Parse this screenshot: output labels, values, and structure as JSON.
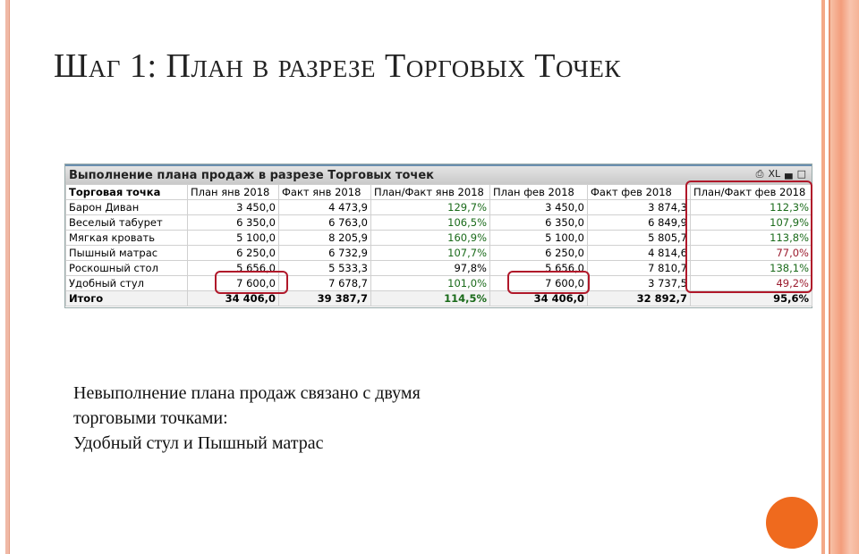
{
  "slide": {
    "title": "Шаг 1: План в разрезе Торговых Точек",
    "body_lines": [
      "Невыполнение плана продаж связано с двумя",
      "торговыми точками:",
      "Удобный стул и Пышный матрас"
    ],
    "accent_color": "#ef6a1e"
  },
  "table": {
    "title": "Выполнение плана продаж в разрезе Торговых точек",
    "icons": [
      "print-icon",
      "XL",
      "minimize-icon",
      "maximize-icon"
    ],
    "xl_label": "XL",
    "headers": [
      "Торговая точка",
      "План янв 2018",
      "Факт янв 2018",
      "План/Факт янв 2018",
      "План фев 2018",
      "Факт фев 2018",
      "План/Факт фев 2018"
    ],
    "rows": [
      [
        "Барон Диван",
        "3 450,0",
        "4 473,9",
        "129,7%",
        "3 450,0",
        "3 874,3",
        "112,3%"
      ],
      [
        "Веселый табурет",
        "6 350,0",
        "6 763,0",
        "106,5%",
        "6 350,0",
        "6 849,9",
        "107,9%"
      ],
      [
        "Мягкая кровать",
        "5 100,0",
        "8 205,9",
        "160,9%",
        "5 100,0",
        "5 805,7",
        "113,8%"
      ],
      [
        "Пышный матрас",
        "6 250,0",
        "6 732,9",
        "107,7%",
        "6 250,0",
        "4 814,6",
        "77,0%"
      ],
      [
        "Роскошный стол",
        "5 656,0",
        "5 533,3",
        "97,8%",
        "5 656,0",
        "7 810,7",
        "138,1%"
      ],
      [
        "Удобный стул",
        "7 600,0",
        "7 678,7",
        "101,0%",
        "7 600,0",
        "3 737,5",
        "49,2%"
      ]
    ],
    "total": [
      "Итого",
      "34 406,0",
      "39 387,7",
      "114,5%",
      "34 406,0",
      "32 892,7",
      "95,6%"
    ],
    "colors": {
      "good": "#1a6a1a",
      "bad": "#9b1b2e",
      "highlight": "#b0182a"
    }
  }
}
